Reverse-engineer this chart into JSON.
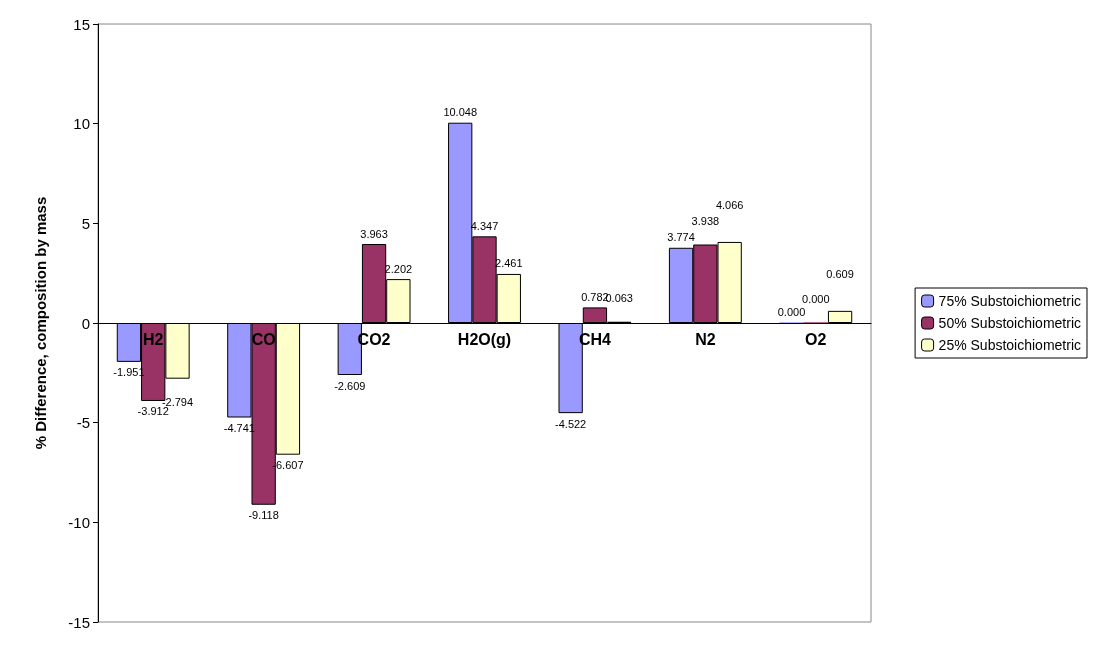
{
  "chart_data": {
    "type": "bar",
    "ylabel": "% Difference, composition by mass",
    "categories": [
      "H2",
      "CO",
      "CO2",
      "H2O(g)",
      "CH4",
      "N2",
      "O2"
    ],
    "series": [
      {
        "name": "75% Substoichiometric",
        "color": "#9999ff",
        "values": [
          -1.951,
          -4.741,
          -2.609,
          10.048,
          -4.522,
          3.774,
          0.0
        ],
        "value_labels": [
          "-1.951",
          "-4.741",
          "-2.609",
          "10.048",
          "-4.522",
          "3.774",
          "0.000"
        ]
      },
      {
        "name": "50% Substoichiometric",
        "color": "#993366",
        "values": [
          -3.912,
          -9.118,
          3.963,
          4.347,
          0.782,
          3.938,
          0.0
        ],
        "value_labels": [
          "-3.912",
          "-9.118",
          "3.963",
          "4.347",
          "0.782",
          "3.938",
          "0.000"
        ]
      },
      {
        "name": "25% Substoichiometric",
        "color": "#ffffcc",
        "values": [
          -2.794,
          -6.607,
          2.202,
          2.461,
          0.063,
          4.066,
          0.609
        ],
        "value_labels": [
          "-2.794",
          "-6.607",
          "2.202",
          "2.461",
          "0.063",
          "4.066",
          "0.609"
        ]
      }
    ],
    "ylim": [
      -15,
      15
    ],
    "yticks": [
      -15,
      -10,
      -5,
      0,
      5,
      10,
      15
    ],
    "grid": false,
    "legend": "right"
  }
}
